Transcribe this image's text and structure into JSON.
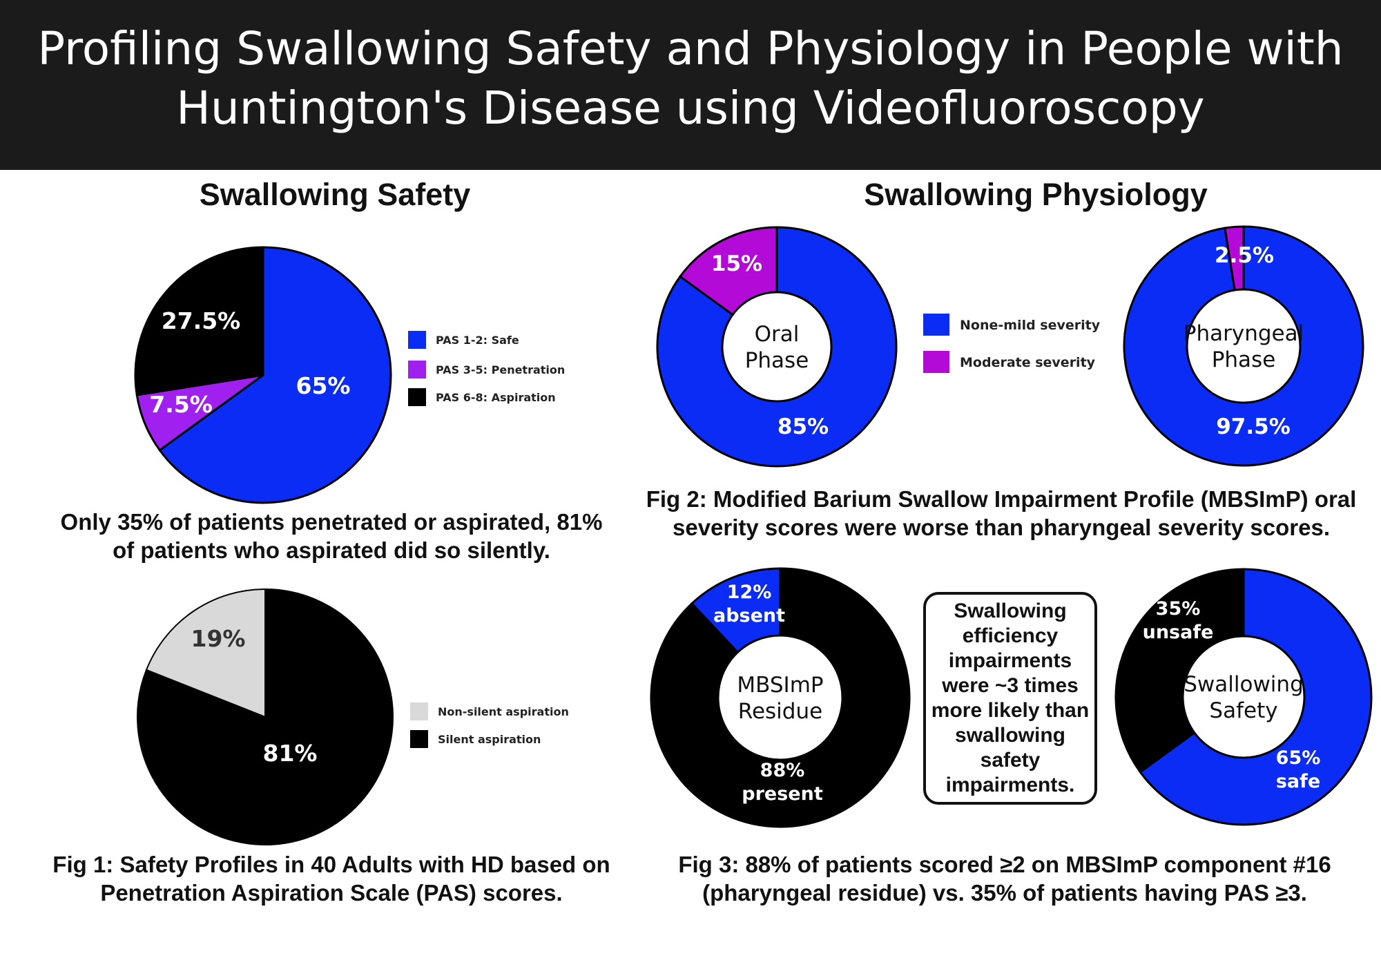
{
  "title": "Profiling Swallowing Safety and Physiology in People with Huntington's Disease using Videofluoroscopy",
  "sections": {
    "safety_title": "Swallowing Safety",
    "physiology_title": "Swallowing Physiology"
  },
  "captions": {
    "safety_note": "Only 35% of patients penetrated or aspirated, 81% of patients who aspirated did so silently.",
    "fig1": "Fig 1: Safety Profiles in 40 Adults with HD based on Penetration Aspiration Scale (PAS) scores.",
    "fig2": "Fig 2: Modified Barium Swallow Impairment Profile (MBSImP) oral severity scores were worse than pharyngeal severity scores.",
    "fig3": "Fig 3: 88% of patients scored ≥2 on MBSImP component #16 (pharyngeal residue) vs. 35% of patients having PAS ≥3."
  },
  "callout": "Swallowing efficiency impairments were ~3 times more likely than swallowing safety impairments.",
  "chart_data": [
    {
      "type": "pie",
      "id": "pas",
      "categories": [
        "PAS 1-2: Safe",
        "PAS 3-5: Penetration",
        "PAS 6-8: Aspiration"
      ],
      "values": [
        65,
        7.5,
        27.5
      ],
      "labels": [
        "65%",
        "7.5%",
        "27.5%"
      ],
      "colors": [
        "#0a2cf5",
        "#a020f0",
        "#000000"
      ],
      "legend": "right"
    },
    {
      "type": "pie",
      "id": "aspiration",
      "categories": [
        "Silent aspiration",
        "Non-silent aspiration"
      ],
      "values": [
        81,
        19
      ],
      "labels": [
        "81%",
        "19%"
      ],
      "colors": [
        "#000000",
        "#d9d9d9"
      ],
      "legend_order": [
        "Non-silent aspiration",
        "Silent aspiration"
      ],
      "legend": "right"
    },
    {
      "type": "pie",
      "id": "oral",
      "center_label": [
        "Oral",
        "Phase"
      ],
      "categories": [
        "None-mild severity",
        "Moderate severity"
      ],
      "values": [
        85,
        15
      ],
      "labels": [
        "85%",
        "15%"
      ],
      "colors": [
        "#0a2cf5",
        "#b40ad8"
      ],
      "legend": "between"
    },
    {
      "type": "pie",
      "id": "pharyngeal",
      "center_label": [
        "Pharyngeal",
        "Phase"
      ],
      "categories": [
        "None-mild severity",
        "Moderate severity"
      ],
      "values": [
        97.5,
        2.5
      ],
      "labels": [
        "97.5%",
        "2.5%"
      ],
      "colors": [
        "#0a2cf5",
        "#b40ad8"
      ]
    },
    {
      "type": "pie",
      "id": "residue",
      "center_label": [
        "MBSImP",
        "Residue"
      ],
      "categories": [
        "present",
        "absent"
      ],
      "values": [
        88,
        12
      ],
      "labels": [
        [
          "88%",
          "present"
        ],
        [
          "12%",
          "absent"
        ]
      ],
      "colors": [
        "#000000",
        "#0a2cf5"
      ]
    },
    {
      "type": "pie",
      "id": "safety",
      "center_label": [
        "Swallowing",
        "Safety"
      ],
      "categories": [
        "safe",
        "unsafe"
      ],
      "values": [
        65,
        35
      ],
      "labels": [
        [
          "65%",
          "safe"
        ],
        [
          "35%",
          "unsafe"
        ]
      ],
      "colors": [
        "#0a2cf5",
        "#000000"
      ]
    }
  ]
}
